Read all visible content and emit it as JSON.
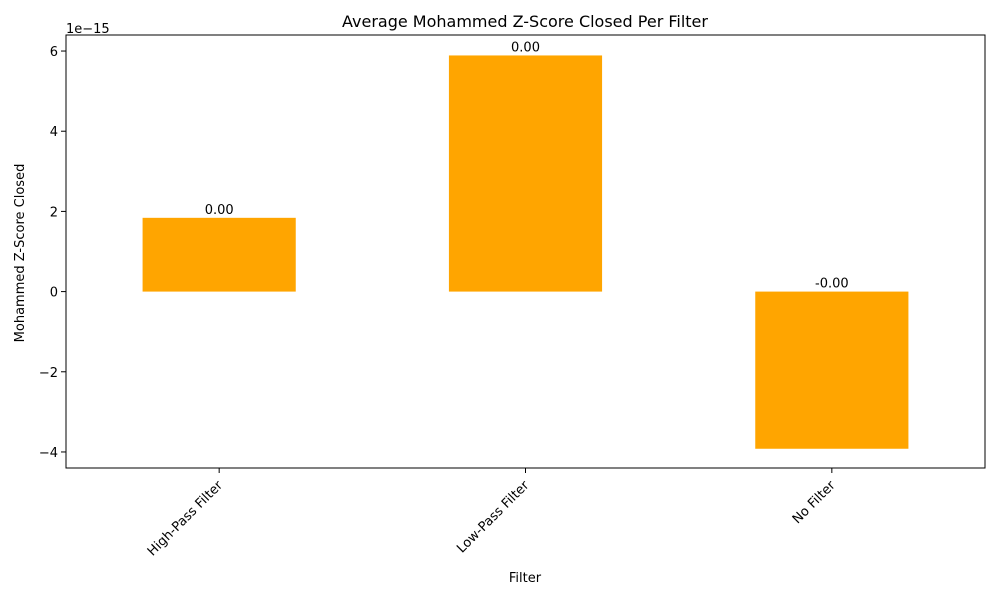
{
  "chart_data": {
    "type": "bar",
    "title": "Average Mohammed Z-Score Closed Per Filter",
    "xlabel": "Filter",
    "ylabel": "Mohammed Z-Score Closed",
    "y_offset_text": "1e−15",
    "categories": [
      "High-Pass Filter",
      "Low-Pass Filter",
      "No Filter"
    ],
    "values": [
      1.84e-15,
      5.89e-15,
      -3.92e-15
    ],
    "value_labels": [
      "0.00",
      "0.00",
      "-0.00"
    ],
    "y_scale": 1e-15,
    "ylim": [
      -4.4,
      6.4
    ],
    "yticks": [
      -4,
      -2,
      0,
      2,
      4,
      6
    ],
    "ytick_labels": [
      "−4",
      "−2",
      "0",
      "2",
      "4",
      "6"
    ],
    "bar_color": "#ffa500",
    "grid": false,
    "legend": "none"
  }
}
